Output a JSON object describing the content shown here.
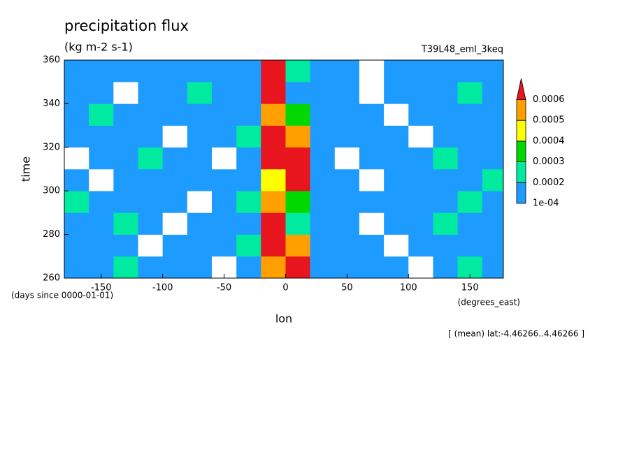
{
  "chart_data": {
    "type": "contourf",
    "title": "precipitation flux",
    "subtitle": "(kg m-2 s-1)",
    "annotation": "T39L48_eml_3keq",
    "xlabel": "lon",
    "ylabel": "time",
    "xunit": "(degrees_east)",
    "yunit": "(days since 0000-01-01)",
    "footnote": "[ (mean) lat:-4.46266..4.46266 ]",
    "xlim": [
      -180,
      177.1875
    ],
    "ylim": [
      260,
      360
    ],
    "xticks": [
      -150,
      -100,
      -50,
      0,
      50,
      100,
      150
    ],
    "yticks": [
      260,
      280,
      300,
      320,
      340,
      360
    ],
    "levels": [
      {
        "value": 0.0001,
        "label": "1e-04"
      },
      0.0002,
      0.0003,
      0.0004,
      0.0005,
      0.0006
    ],
    "colors": [
      "#ffffff",
      "#1e9bff",
      "#00eaa0",
      "#00d800",
      "#ffff00",
      "#ffa000",
      "#e8141e"
    ],
    "x": [
      -170,
      -150,
      -130,
      -110,
      -90,
      -70,
      -50,
      -30,
      -10,
      10,
      30,
      50,
      70,
      90,
      110,
      130,
      150,
      170
    ],
    "y": [
      265,
      275,
      285,
      295,
      305,
      315,
      325,
      335,
      345,
      355
    ],
    "z": [
      [
        0.00015,
        0.00015,
        0.00025,
        0.00015,
        0.00015,
        0.00015,
        5e-05,
        0.00015,
        0.00055,
        0.00065,
        0.00015,
        0.00015,
        0.00015,
        0.00015,
        5e-05,
        0.00015,
        0.00025,
        0.00015
      ],
      [
        0.00015,
        0.00015,
        0.00015,
        5e-05,
        0.00015,
        0.00015,
        0.00015,
        0.00025,
        0.00065,
        0.00055,
        0.00015,
        0.00015,
        0.00015,
        5e-05,
        0.00015,
        0.00015,
        0.00015,
        0.00015
      ],
      [
        0.00015,
        0.00015,
        0.00025,
        0.00015,
        5e-05,
        0.00015,
        0.00015,
        0.00015,
        0.00065,
        0.00025,
        0.00015,
        0.00015,
        5e-05,
        0.00015,
        0.00015,
        0.00025,
        0.00015,
        0.00015
      ],
      [
        0.00025,
        0.00015,
        0.00015,
        0.00015,
        0.00015,
        5e-05,
        0.00015,
        0.00025,
        0.00055,
        0.00035,
        0.00015,
        0.00015,
        0.00015,
        0.00015,
        0.00015,
        0.00015,
        0.00025,
        0.00015
      ],
      [
        0.00015,
        5e-05,
        0.00015,
        0.00015,
        0.00015,
        0.00015,
        0.00015,
        0.00015,
        0.00045,
        0.00065,
        0.00015,
        0.00015,
        5e-05,
        0.00015,
        0.00015,
        0.00015,
        0.00015,
        0.00025
      ],
      [
        5e-05,
        0.00015,
        0.00015,
        0.00025,
        0.00015,
        0.00015,
        5e-05,
        0.00015,
        0.00065,
        0.00065,
        0.00015,
        5e-05,
        0.00015,
        0.00015,
        0.00015,
        0.00025,
        0.00015,
        0.00015
      ],
      [
        0.00015,
        0.00015,
        0.00015,
        0.00015,
        5e-05,
        0.00015,
        0.00015,
        0.00025,
        0.00065,
        0.00055,
        0.00015,
        0.00015,
        0.00015,
        0.00015,
        5e-05,
        0.00015,
        0.00015,
        0.00015
      ],
      [
        0.00015,
        0.00025,
        0.00015,
        0.00015,
        0.00015,
        0.00015,
        0.00015,
        0.00015,
        0.00055,
        0.00035,
        0.00015,
        0.00015,
        0.00015,
        5e-05,
        0.00015,
        0.00015,
        0.00015,
        0.00015
      ],
      [
        0.00015,
        0.00015,
        5e-05,
        0.00015,
        0.00015,
        0.00025,
        0.00015,
        0.00015,
        0.00065,
        0.00015,
        0.00015,
        0.00015,
        5e-05,
        0.00015,
        0.00015,
        0.00015,
        0.00025,
        0.00015
      ],
      [
        0.00015,
        0.00015,
        0.00015,
        0.00015,
        0.00015,
        0.00015,
        0.00015,
        0.00015,
        0.00065,
        0.00025,
        0.00015,
        0.00015,
        5e-05,
        0.00015,
        0.00015,
        0.00015,
        0.00015,
        0.00015
      ]
    ]
  }
}
